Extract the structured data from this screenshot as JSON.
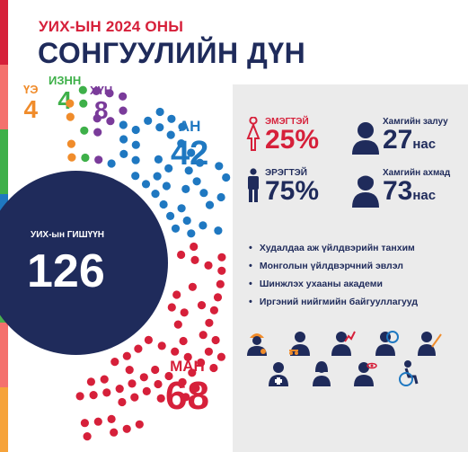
{
  "header": {
    "subtitle": "УИХ-ЫН 2024 ОНЫ",
    "title": "СОНГУУЛИЙН ДҮН"
  },
  "parties": [
    {
      "name": "ҮЭ",
      "seats": "4",
      "color": "#f08c2b"
    },
    {
      "name": "ИЗНН",
      "seats": "4",
      "color": "#3eb049"
    },
    {
      "name": "ХҮН",
      "seats": "8",
      "color": "#7a3b9a"
    },
    {
      "name": "АН",
      "seats": "42",
      "color": "#1f78c1"
    },
    {
      "name": "МАН",
      "seats": "68",
      "color": "#d6203a"
    }
  ],
  "total": {
    "label": "УИХ-ын ГИШҮҮН",
    "value": "126"
  },
  "stats": {
    "female": {
      "label": "ЭМЭГТЭЙ",
      "value": "25%"
    },
    "male": {
      "label": "ЭРЭГТЭЙ",
      "value": "75%"
    },
    "youngest": {
      "label": "Хамгийн залуу",
      "value": "27",
      "unit": "нас"
    },
    "oldest": {
      "label": "Хамгийн ахмад",
      "value": "73",
      "unit": "нас"
    }
  },
  "backgrounds": [
    "Худалдаа аж үйлдвэрийн танхим",
    "Монголын үйлдвэрчний эвлэл",
    "Шинжлэх ухааны академи",
    "Иргэний нийгмийн байгууллагууд"
  ],
  "profession_icons": [
    "worker-icon",
    "lawyer-icon",
    "business-icon",
    "diplomat-icon",
    "teacher-icon",
    "doctor-icon",
    "woman-icon",
    "scientist-icon",
    "disabled-icon"
  ],
  "colors": {
    "navy": "#1f2b5b",
    "red": "#d6203a",
    "blue": "#1f78c1",
    "stripe": [
      "#d6203a",
      "#f4716d",
      "#3eb049",
      "#1f78c1",
      "#8bc34a",
      "#f4716d",
      "#f6a33a"
    ]
  }
}
